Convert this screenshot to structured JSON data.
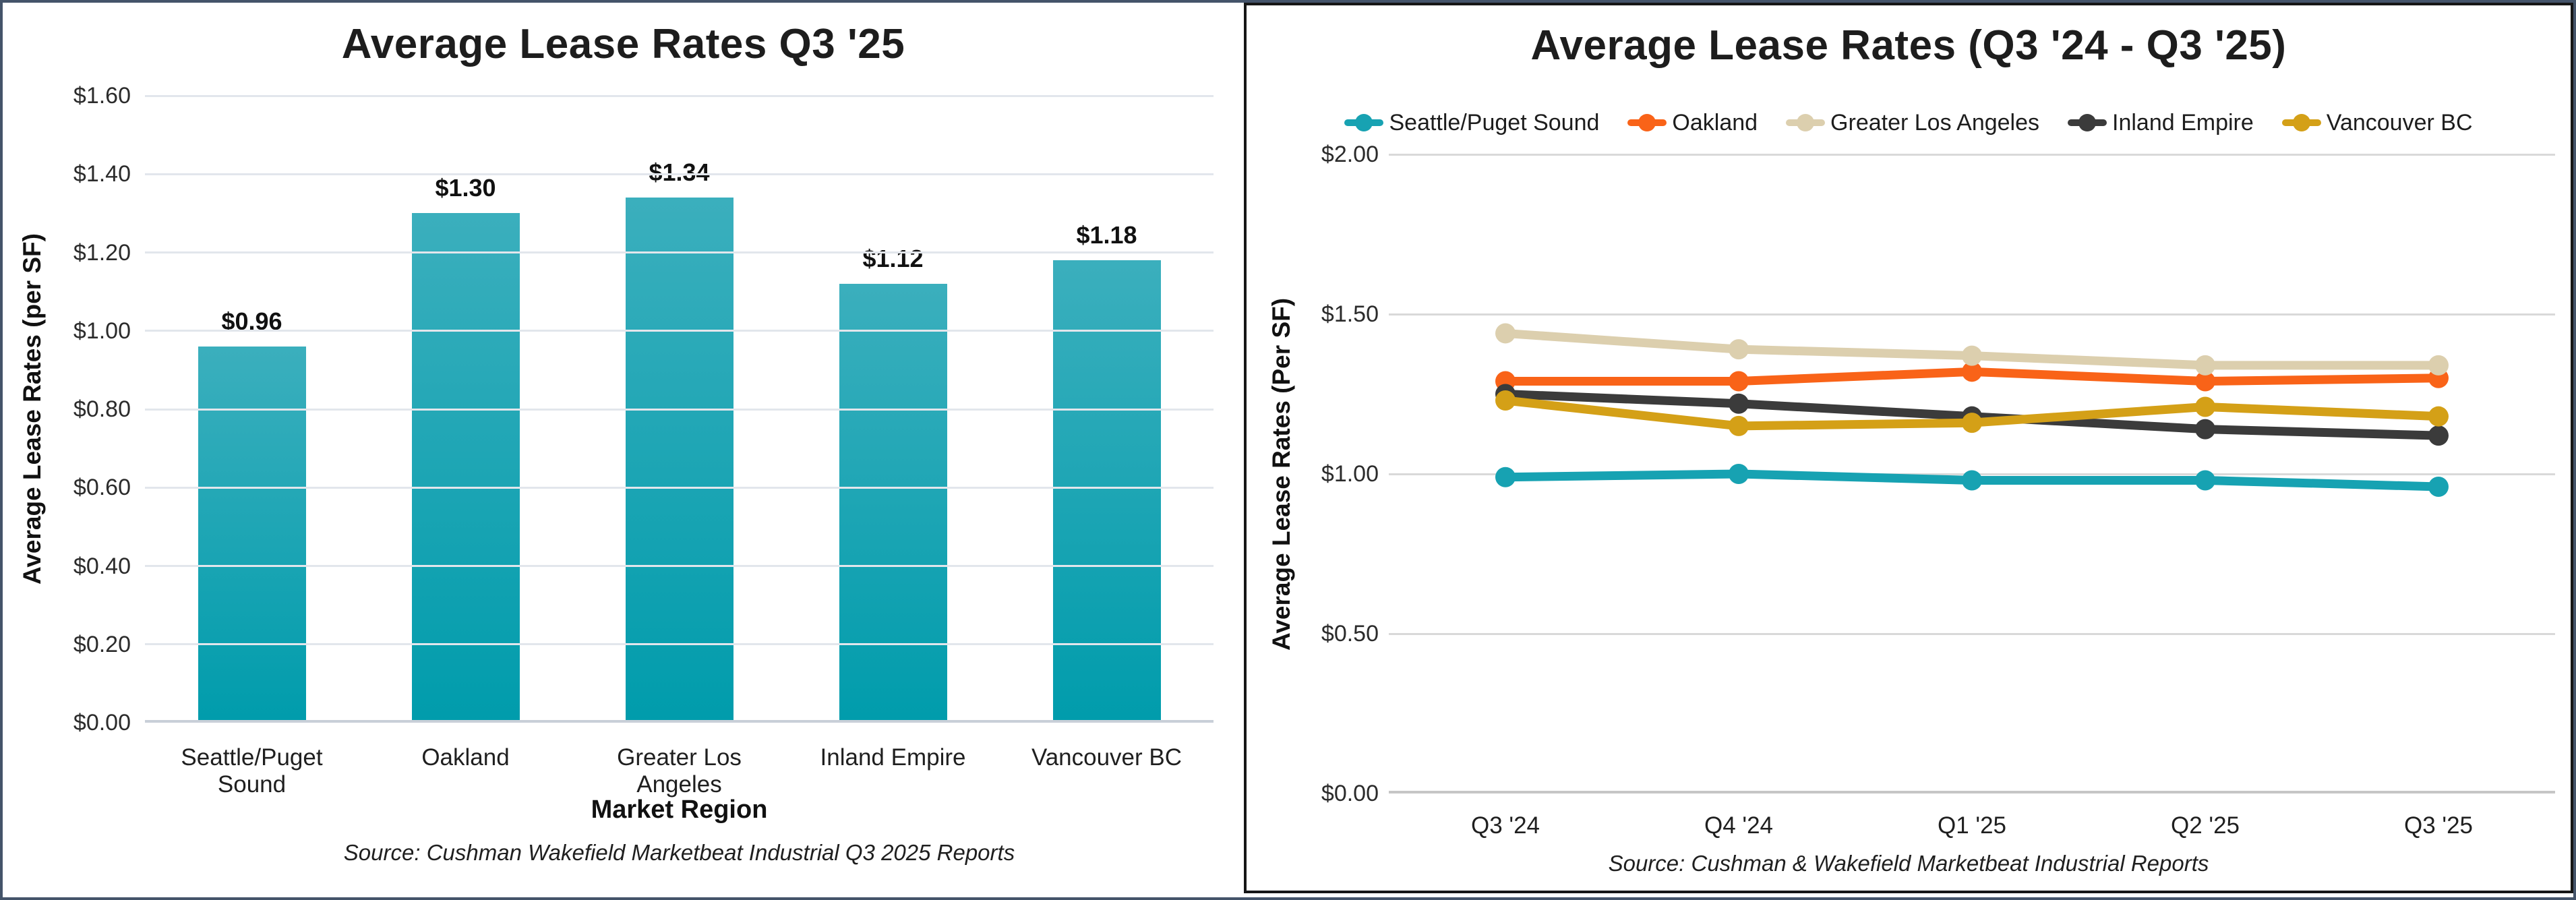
{
  "frame": {
    "outer_border_color": "#44546A",
    "right_panel_border_color": "#161616"
  },
  "chart_data": [
    {
      "type": "bar",
      "title": "Average Lease Rates Q3 '25",
      "categories": [
        "Seattle/Puget Sound",
        "Oakland",
        "Greater Los Angeles",
        "Inland Empire",
        "Vancouver BC"
      ],
      "values": [
        0.96,
        1.3,
        1.34,
        1.12,
        1.18
      ],
      "bar_labels": [
        "$0.96",
        "$1.30",
        "$1.34",
        "$1.12",
        "$1.18"
      ],
      "xlabel": "Market Region",
      "ylabel": "Average Lease Rates (per SF)",
      "ylim": [
        0,
        1.6
      ],
      "ytick_step": 0.2,
      "ytick_labels": [
        "$0.00",
        "$0.20",
        "$0.40",
        "$0.60",
        "$0.80",
        "$1.00",
        "$1.20",
        "$1.40",
        "$1.60"
      ],
      "grid": true,
      "bar_gradient_top": "#3BAFBD",
      "bar_gradient_bottom": "#009CAC",
      "source": "Source: Cushman Wakefield Marketbeat Industrial Q3 2025 Reports"
    },
    {
      "type": "line",
      "title": "Average Lease Rates (Q3 '24 - Q3 '25)",
      "categories": [
        "Q3 '24",
        "Q4 '24",
        "Q1 '25",
        "Q2 '25",
        "Q3 '25"
      ],
      "series": [
        {
          "name": "Seattle/Puget Sound",
          "color": "#17A2B2",
          "values": [
            0.99,
            1.0,
            0.98,
            0.98,
            0.96
          ]
        },
        {
          "name": "Oakland",
          "color": "#F96318",
          "values": [
            1.29,
            1.29,
            1.32,
            1.29,
            1.3
          ]
        },
        {
          "name": "Greater Los Angeles",
          "color": "#DCCFAE",
          "values": [
            1.44,
            1.39,
            1.37,
            1.34,
            1.34
          ]
        },
        {
          "name": "Inland Empire",
          "color": "#3B3B3B",
          "values": [
            1.25,
            1.22,
            1.18,
            1.14,
            1.12
          ]
        },
        {
          "name": "Vancouver BC",
          "color": "#D4A017",
          "values": [
            1.23,
            1.15,
            1.16,
            1.21,
            1.18
          ]
        }
      ],
      "ylabel": "Average Lease Rates (Per SF)",
      "ylim": [
        0,
        2.0
      ],
      "ytick_step": 0.5,
      "ytick_labels": [
        "$0.00",
        "$0.50",
        "$1.00",
        "$1.50",
        "$2.00"
      ],
      "legend_position": "top",
      "grid": true,
      "source": "Source: Cushman & Wakefield Marketbeat Industrial Reports"
    }
  ]
}
